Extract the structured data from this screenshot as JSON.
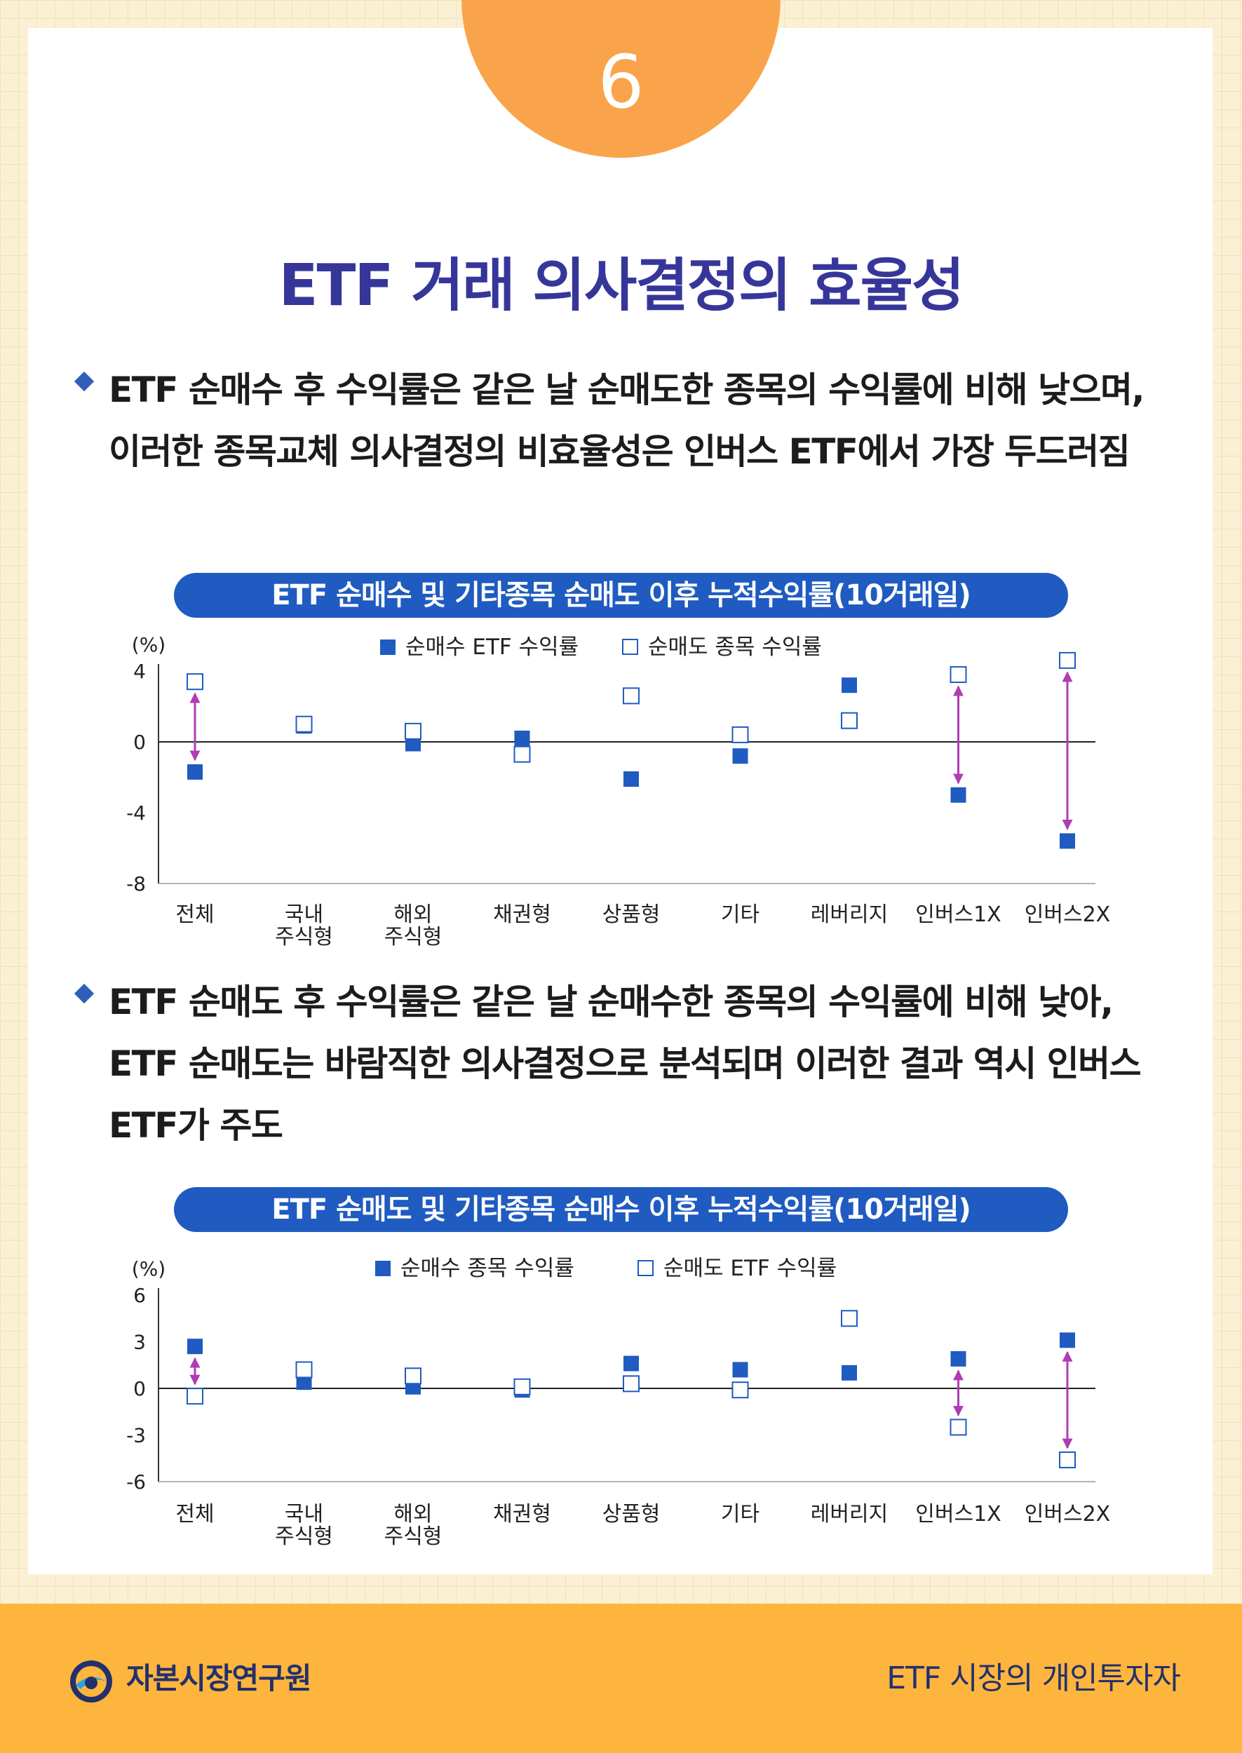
{
  "page": {
    "number": "6",
    "title": "ETF 거래 의사결정의 효율성",
    "bullet1": "ETF 순매수 후 수익률은 같은 날 순매도한 종목의 수익률에 비해 낮으며, 이러한 종목교체 의사결정의 비효율성은 인버스 ETF에서 가장 두드러짐",
    "bullet2": "ETF 순매도 후 수익률은 같은 날 순매수한 종목의 수익률에 비해 낮아, ETF 순매도는 바람직한 의사결정으로 분석되며 이러한 결과 역시 인버스 ETF가 주도"
  },
  "footer": {
    "org": "자본시장연구원",
    "series": "ETF 시장의 개인투자자"
  },
  "colors": {
    "filled_marker": "#1f5bc0",
    "arrow": "#b03cb4",
    "pill": "#1f5bc0",
    "title": "#36369a",
    "badge": "#f9a44b",
    "footer": "#fdb53d"
  },
  "chart_data": [
    {
      "type": "scatter",
      "title": "ETF 순매수 및 기타종목 순매도 이후 누적수익률(10거래일)",
      "ylabel": "(%)",
      "ylim": [
        -8,
        4
      ],
      "yticks": [
        4,
        0,
        -4,
        -8
      ],
      "categories": [
        [
          "전체"
        ],
        [
          "국내",
          "주식형"
        ],
        [
          "해외",
          "주식형"
        ],
        [
          "채권형"
        ],
        [
          "상품형"
        ],
        [
          "기타"
        ],
        [
          "레버리지"
        ],
        [
          "인버스1X"
        ],
        [
          "인버스2X"
        ]
      ],
      "legend_position": "top-center",
      "series": [
        {
          "name": "순매수 ETF 수익률",
          "marker": "filled-square",
          "values": [
            -1.7,
            0.9,
            -0.1,
            0.2,
            -2.1,
            -0.8,
            3.2,
            -3.0,
            -5.6
          ]
        },
        {
          "name": "순매도 종목 수익률",
          "marker": "hollow-square",
          "values": [
            3.4,
            1.0,
            0.6,
            -0.7,
            2.6,
            0.4,
            1.2,
            3.8,
            4.6
          ]
        }
      ],
      "arrows_between_series_at": [
        "전체",
        "인버스1X",
        "인버스2X"
      ]
    },
    {
      "type": "scatter",
      "title": "ETF 순매도 및 기타종목 순매수 이후 누적수익률(10거래일)",
      "ylabel": "(%)",
      "ylim": [
        -6,
        6
      ],
      "yticks": [
        6,
        3,
        0,
        -3,
        -6
      ],
      "categories": [
        [
          "전체"
        ],
        [
          "국내",
          "주식형"
        ],
        [
          "해외",
          "주식형"
        ],
        [
          "채권형"
        ],
        [
          "상품형"
        ],
        [
          "기타"
        ],
        [
          "레버리지"
        ],
        [
          "인버스1X"
        ],
        [
          "인버스2X"
        ]
      ],
      "legend_position": "top-center",
      "series": [
        {
          "name": "순매수 종목 수익률",
          "marker": "filled-square",
          "values": [
            2.7,
            0.4,
            0.1,
            -0.1,
            1.6,
            1.2,
            1.0,
            1.9,
            3.1
          ]
        },
        {
          "name": "순매도 ETF 수익률",
          "marker": "hollow-square",
          "values": [
            -0.5,
            1.2,
            0.8,
            0.1,
            0.3,
            -0.1,
            4.5,
            -2.5,
            -4.6
          ]
        }
      ],
      "arrows_between_series_at": [
        "전체",
        "인버스1X",
        "인버스2X"
      ]
    }
  ]
}
